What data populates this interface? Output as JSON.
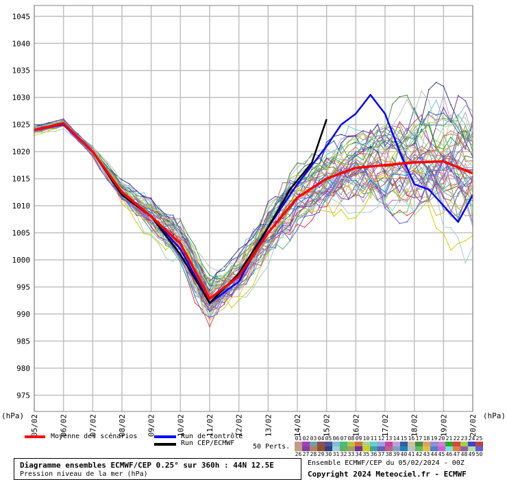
{
  "chart_data": {
    "type": "line",
    "xlabel": "",
    "ylabel": "(hPa)",
    "ylim": [
      972,
      1047
    ],
    "yticks": [
      975,
      980,
      985,
      990,
      995,
      1000,
      1005,
      1010,
      1015,
      1020,
      1025,
      1030,
      1035,
      1040,
      1045
    ],
    "xticks": [
      "05/02",
      "06/02",
      "07/02",
      "08/02",
      "09/02",
      "10/02",
      "11/02",
      "12/02",
      "13/02",
      "14/02",
      "15/02",
      "16/02",
      "17/02",
      "18/02",
      "19/02",
      "20/02"
    ],
    "x_unit_label": "(hPa)",
    "x_steps_per_day": 4,
    "grid": true,
    "mean": {
      "name": "Moyenne des scénarios",
      "color": "#ff0000",
      "knots": [
        [
          0,
          1024
        ],
        [
          4,
          1025.2
        ],
        [
          8,
          1020
        ],
        [
          12,
          1012.5
        ],
        [
          16,
          1008
        ],
        [
          20,
          1003
        ],
        [
          24,
          992.8
        ],
        [
          28,
          997
        ],
        [
          32,
          1005
        ],
        [
          36,
          1011.5
        ],
        [
          40,
          1015
        ],
        [
          44,
          1017
        ],
        [
          48,
          1017.5
        ],
        [
          52,
          1018
        ],
        [
          56,
          1018.2
        ],
        [
          60,
          1016
        ]
      ]
    },
    "control": {
      "name": "Run de contrôle",
      "color": "#0000ff",
      "knots": [
        [
          0,
          1024
        ],
        [
          4,
          1025
        ],
        [
          8,
          1020
        ],
        [
          12,
          1012
        ],
        [
          16,
          1008
        ],
        [
          20,
          1002
        ],
        [
          24,
          992
        ],
        [
          28,
          996
        ],
        [
          32,
          1006
        ],
        [
          36,
          1014
        ],
        [
          40,
          1021
        ],
        [
          42,
          1025
        ],
        [
          44,
          1027
        ],
        [
          46,
          1030.5
        ],
        [
          48,
          1027
        ],
        [
          50,
          1020
        ],
        [
          52,
          1014
        ],
        [
          54,
          1013
        ],
        [
          56,
          1010
        ],
        [
          58,
          1007
        ],
        [
          60,
          1012
        ]
      ]
    },
    "deterministic": {
      "name": "Run CEP/ECMWF",
      "color": "#000000",
      "knots": [
        [
          0,
          1024
        ],
        [
          4,
          1025.3
        ],
        [
          8,
          1020
        ],
        [
          12,
          1012
        ],
        [
          16,
          1008
        ],
        [
          20,
          1001
        ],
        [
          24,
          992
        ],
        [
          28,
          997.5
        ],
        [
          32,
          1006
        ],
        [
          35,
          1013
        ],
        [
          38,
          1018
        ],
        [
          40,
          1026
        ]
      ]
    },
    "members_label": "50 Perts.",
    "members": [
      {
        "id": "01",
        "color": "#c89690"
      },
      {
        "id": "02",
        "color": "#a040c0"
      },
      {
        "id": "03",
        "color": "#70a0a0"
      },
      {
        "id": "04",
        "color": "#8c5050"
      },
      {
        "id": "05",
        "color": "#5050a0"
      },
      {
        "id": "06",
        "color": "#80c0d0"
      },
      {
        "id": "07",
        "color": "#40c080"
      },
      {
        "id": "08",
        "color": "#c0c040"
      },
      {
        "id": "09",
        "color": "#d07040"
      },
      {
        "id": "10",
        "color": "#b0d080"
      },
      {
        "id": "11",
        "color": "#60d0d0"
      },
      {
        "id": "12",
        "color": "#a0a0e0"
      },
      {
        "id": "13",
        "color": "#d040a0"
      },
      {
        "id": "14",
        "color": "#c0a0d0"
      },
      {
        "id": "15",
        "color": "#3060a0"
      },
      {
        "id": "16",
        "color": "#d0c0a0"
      },
      {
        "id": "17",
        "color": "#409040"
      },
      {
        "id": "18",
        "color": "#e0a060"
      },
      {
        "id": "19",
        "color": "#9090d0"
      },
      {
        "id": "20",
        "color": "#d080d0"
      },
      {
        "id": "21",
        "color": "#20b020"
      },
      {
        "id": "22",
        "color": "#e04040"
      },
      {
        "id": "23",
        "color": "#a0d040"
      },
      {
        "id": "24",
        "color": "#4040d0"
      },
      {
        "id": "25",
        "color": "#c04040"
      },
      {
        "id": "26",
        "color": "#c0a080"
      },
      {
        "id": "27",
        "color": "#8040a0"
      },
      {
        "id": "28",
        "color": "#b08060"
      },
      {
        "id": "29",
        "color": "#905030"
      },
      {
        "id": "30",
        "color": "#304080"
      },
      {
        "id": "31",
        "color": "#a0d0e0"
      },
      {
        "id": "32",
        "color": "#60b060"
      },
      {
        "id": "33",
        "color": "#a0a060"
      },
      {
        "id": "34",
        "color": "#7030a0"
      },
      {
        "id": "35",
        "color": "#d0d000"
      },
      {
        "id": "36",
        "color": "#40a0a0"
      },
      {
        "id": "37",
        "color": "#6060c0"
      },
      {
        "id": "38",
        "color": "#c06080"
      },
      {
        "id": "39",
        "color": "#80a0c0"
      },
      {
        "id": "40",
        "color": "#2080c0"
      },
      {
        "id": "41",
        "color": "#c0c0c0"
      },
      {
        "id": "42",
        "color": "#60c060"
      },
      {
        "id": "43",
        "color": "#e0c040"
      },
      {
        "id": "44",
        "color": "#5080d0"
      },
      {
        "id": "45",
        "color": "#d060d0"
      },
      {
        "id": "46",
        "color": "#80e0e0"
      },
      {
        "id": "47",
        "color": "#e08040"
      },
      {
        "id": "48",
        "color": "#9060a0"
      },
      {
        "id": "49",
        "color": "#b0e0a0"
      },
      {
        "id": "50",
        "color": "#6060e0"
      }
    ]
  },
  "footer": {
    "title": "Diagramme ensembles ECMWF/CEP 0.25° sur 360h : 44N 12.5E",
    "subtitle": "Pression niveau de la mer (hPa)",
    "ensemble_info": "Ensemble ECMWF/CEP du 05/02/2024 - 00Z",
    "copyright": "Copyright 2024 Meteociel.fr - ECMWF"
  }
}
